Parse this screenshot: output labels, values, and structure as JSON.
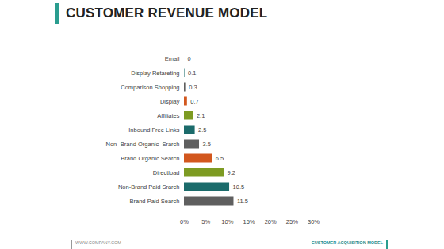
{
  "chart_data": {
    "type": "bar",
    "title": "CUSTOMER REVENUE MODEL",
    "orientation": "horizontal",
    "categories": [
      "Email",
      "Display Retareting",
      "Comparison Shopping",
      "Display",
      "Affiliates",
      "Inbound Free Links",
      "Non- Brand Organic  Srarch",
      "Brand Organic Search",
      "Directload",
      "Non-Brand Paid Srarch",
      "Brand Paid Search"
    ],
    "values": [
      0,
      0.1,
      0.3,
      0.7,
      2.1,
      2.5,
      3.5,
      6.5,
      9.2,
      10.5,
      11.5
    ],
    "colors": [
      "#7d9b22",
      "#1b6b6b",
      "#5f5f5f",
      "#d2571e",
      "#7d9b22",
      "#1b6b6b",
      "#5f5f5f",
      "#d2571e",
      "#7d9b22",
      "#1b6b6b",
      "#5f5f5f"
    ],
    "xlim": [
      0,
      30
    ],
    "xticks": [
      {
        "value": 0,
        "label": "0%"
      },
      {
        "value": 5,
        "label": "5%"
      },
      {
        "value": 10,
        "label": "10%"
      },
      {
        "value": 15,
        "label": "15%"
      },
      {
        "value": 20,
        "label": "20%"
      },
      {
        "value": 25,
        "label": "25%"
      },
      {
        "value": 30,
        "label": "30%"
      }
    ],
    "grid": false,
    "data_labels": true
  },
  "footer": {
    "left": "WWW.COMPANY.COM",
    "right": "CUSTOMER ACQUISITION MODEL"
  }
}
